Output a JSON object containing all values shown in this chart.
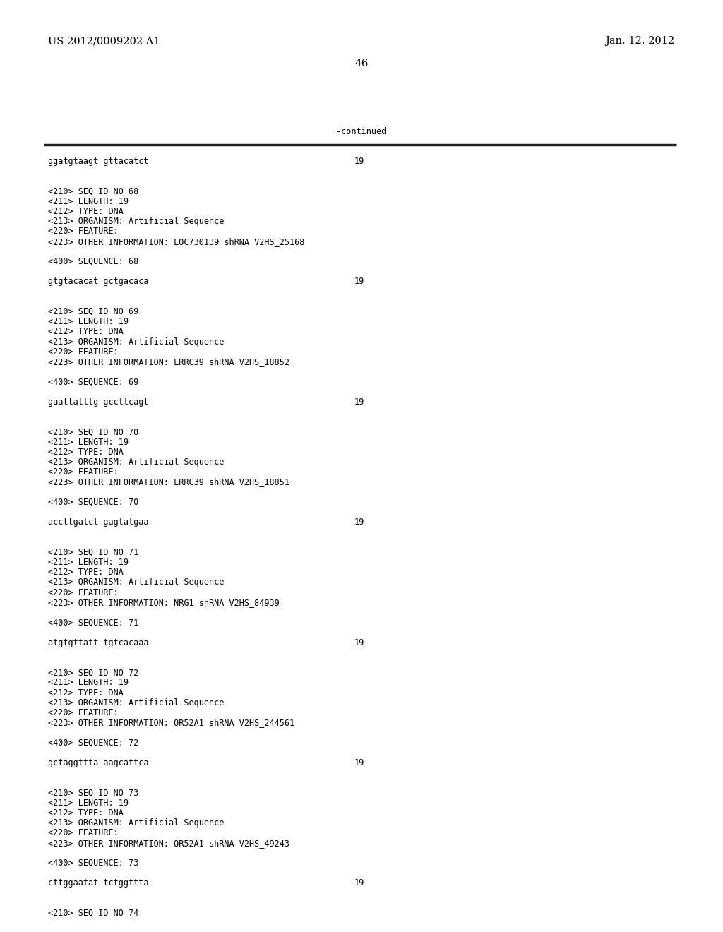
{
  "header_left": "US 2012/0009202 A1",
  "header_right": "Jan. 12, 2012",
  "page_number": "46",
  "continued_label": "-continued",
  "background_color": "#ffffff",
  "text_color": "#000000",
  "font_size_header": 10.5,
  "font_size_body": 8.5,
  "font_size_page": 11,
  "col2_label": "19",
  "lines": [
    {
      "text": "ggatgtaagt gttacatct",
      "col2": "19",
      "mono": true
    },
    {
      "text": "",
      "col2": "",
      "mono": false
    },
    {
      "text": "",
      "col2": "",
      "mono": false
    },
    {
      "text": "<210> SEQ ID NO 68",
      "col2": "",
      "mono": true
    },
    {
      "text": "<211> LENGTH: 19",
      "col2": "",
      "mono": true
    },
    {
      "text": "<212> TYPE: DNA",
      "col2": "",
      "mono": true
    },
    {
      "text": "<213> ORGANISM: Artificial Sequence",
      "col2": "",
      "mono": true
    },
    {
      "text": "<220> FEATURE:",
      "col2": "",
      "mono": true
    },
    {
      "text": "<223> OTHER INFORMATION: LOC730139 shRNA V2HS_25168",
      "col2": "",
      "mono": true
    },
    {
      "text": "",
      "col2": "",
      "mono": false
    },
    {
      "text": "<400> SEQUENCE: 68",
      "col2": "",
      "mono": true
    },
    {
      "text": "",
      "col2": "",
      "mono": false
    },
    {
      "text": "gtgtacacat gctgacaca",
      "col2": "19",
      "mono": true
    },
    {
      "text": "",
      "col2": "",
      "mono": false
    },
    {
      "text": "",
      "col2": "",
      "mono": false
    },
    {
      "text": "<210> SEQ ID NO 69",
      "col2": "",
      "mono": true
    },
    {
      "text": "<211> LENGTH: 19",
      "col2": "",
      "mono": true
    },
    {
      "text": "<212> TYPE: DNA",
      "col2": "",
      "mono": true
    },
    {
      "text": "<213> ORGANISM: Artificial Sequence",
      "col2": "",
      "mono": true
    },
    {
      "text": "<220> FEATURE:",
      "col2": "",
      "mono": true
    },
    {
      "text": "<223> OTHER INFORMATION: LRRC39 shRNA V2HS_18852",
      "col2": "",
      "mono": true
    },
    {
      "text": "",
      "col2": "",
      "mono": false
    },
    {
      "text": "<400> SEQUENCE: 69",
      "col2": "",
      "mono": true
    },
    {
      "text": "",
      "col2": "",
      "mono": false
    },
    {
      "text": "gaattatttg gccttcagt",
      "col2": "19",
      "mono": true
    },
    {
      "text": "",
      "col2": "",
      "mono": false
    },
    {
      "text": "",
      "col2": "",
      "mono": false
    },
    {
      "text": "<210> SEQ ID NO 70",
      "col2": "",
      "mono": true
    },
    {
      "text": "<211> LENGTH: 19",
      "col2": "",
      "mono": true
    },
    {
      "text": "<212> TYPE: DNA",
      "col2": "",
      "mono": true
    },
    {
      "text": "<213> ORGANISM: Artificial Sequence",
      "col2": "",
      "mono": true
    },
    {
      "text": "<220> FEATURE:",
      "col2": "",
      "mono": true
    },
    {
      "text": "<223> OTHER INFORMATION: LRRC39 shRNA V2HS_18851",
      "col2": "",
      "mono": true
    },
    {
      "text": "",
      "col2": "",
      "mono": false
    },
    {
      "text": "<400> SEQUENCE: 70",
      "col2": "",
      "mono": true
    },
    {
      "text": "",
      "col2": "",
      "mono": false
    },
    {
      "text": "accttgatct gagtatgaa",
      "col2": "19",
      "mono": true
    },
    {
      "text": "",
      "col2": "",
      "mono": false
    },
    {
      "text": "",
      "col2": "",
      "mono": false
    },
    {
      "text": "<210> SEQ ID NO 71",
      "col2": "",
      "mono": true
    },
    {
      "text": "<211> LENGTH: 19",
      "col2": "",
      "mono": true
    },
    {
      "text": "<212> TYPE: DNA",
      "col2": "",
      "mono": true
    },
    {
      "text": "<213> ORGANISM: Artificial Sequence",
      "col2": "",
      "mono": true
    },
    {
      "text": "<220> FEATURE:",
      "col2": "",
      "mono": true
    },
    {
      "text": "<223> OTHER INFORMATION: NRG1 shRNA V2HS_84939",
      "col2": "",
      "mono": true
    },
    {
      "text": "",
      "col2": "",
      "mono": false
    },
    {
      "text": "<400> SEQUENCE: 71",
      "col2": "",
      "mono": true
    },
    {
      "text": "",
      "col2": "",
      "mono": false
    },
    {
      "text": "atgtgttatt tgtcacaaa",
      "col2": "19",
      "mono": true
    },
    {
      "text": "",
      "col2": "",
      "mono": false
    },
    {
      "text": "",
      "col2": "",
      "mono": false
    },
    {
      "text": "<210> SEQ ID NO 72",
      "col2": "",
      "mono": true
    },
    {
      "text": "<211> LENGTH: 19",
      "col2": "",
      "mono": true
    },
    {
      "text": "<212> TYPE: DNA",
      "col2": "",
      "mono": true
    },
    {
      "text": "<213> ORGANISM: Artificial Sequence",
      "col2": "",
      "mono": true
    },
    {
      "text": "<220> FEATURE:",
      "col2": "",
      "mono": true
    },
    {
      "text": "<223> OTHER INFORMATION: OR52A1 shRNA V2HS_244561",
      "col2": "",
      "mono": true
    },
    {
      "text": "",
      "col2": "",
      "mono": false
    },
    {
      "text": "<400> SEQUENCE: 72",
      "col2": "",
      "mono": true
    },
    {
      "text": "",
      "col2": "",
      "mono": false
    },
    {
      "text": "gctaggttta aagcattca",
      "col2": "19",
      "mono": true
    },
    {
      "text": "",
      "col2": "",
      "mono": false
    },
    {
      "text": "",
      "col2": "",
      "mono": false
    },
    {
      "text": "<210> SEQ ID NO 73",
      "col2": "",
      "mono": true
    },
    {
      "text": "<211> LENGTH: 19",
      "col2": "",
      "mono": true
    },
    {
      "text": "<212> TYPE: DNA",
      "col2": "",
      "mono": true
    },
    {
      "text": "<213> ORGANISM: Artificial Sequence",
      "col2": "",
      "mono": true
    },
    {
      "text": "<220> FEATURE:",
      "col2": "",
      "mono": true
    },
    {
      "text": "<223> OTHER INFORMATION: OR52A1 shRNA V2HS_49243",
      "col2": "",
      "mono": true
    },
    {
      "text": "",
      "col2": "",
      "mono": false
    },
    {
      "text": "<400> SEQUENCE: 73",
      "col2": "",
      "mono": true
    },
    {
      "text": "",
      "col2": "",
      "mono": false
    },
    {
      "text": "cttggaatat tctggttta",
      "col2": "19",
      "mono": true
    },
    {
      "text": "",
      "col2": "",
      "mono": false
    },
    {
      "text": "",
      "col2": "",
      "mono": false
    },
    {
      "text": "<210> SEQ ID NO 74",
      "col2": "",
      "mono": true
    }
  ]
}
